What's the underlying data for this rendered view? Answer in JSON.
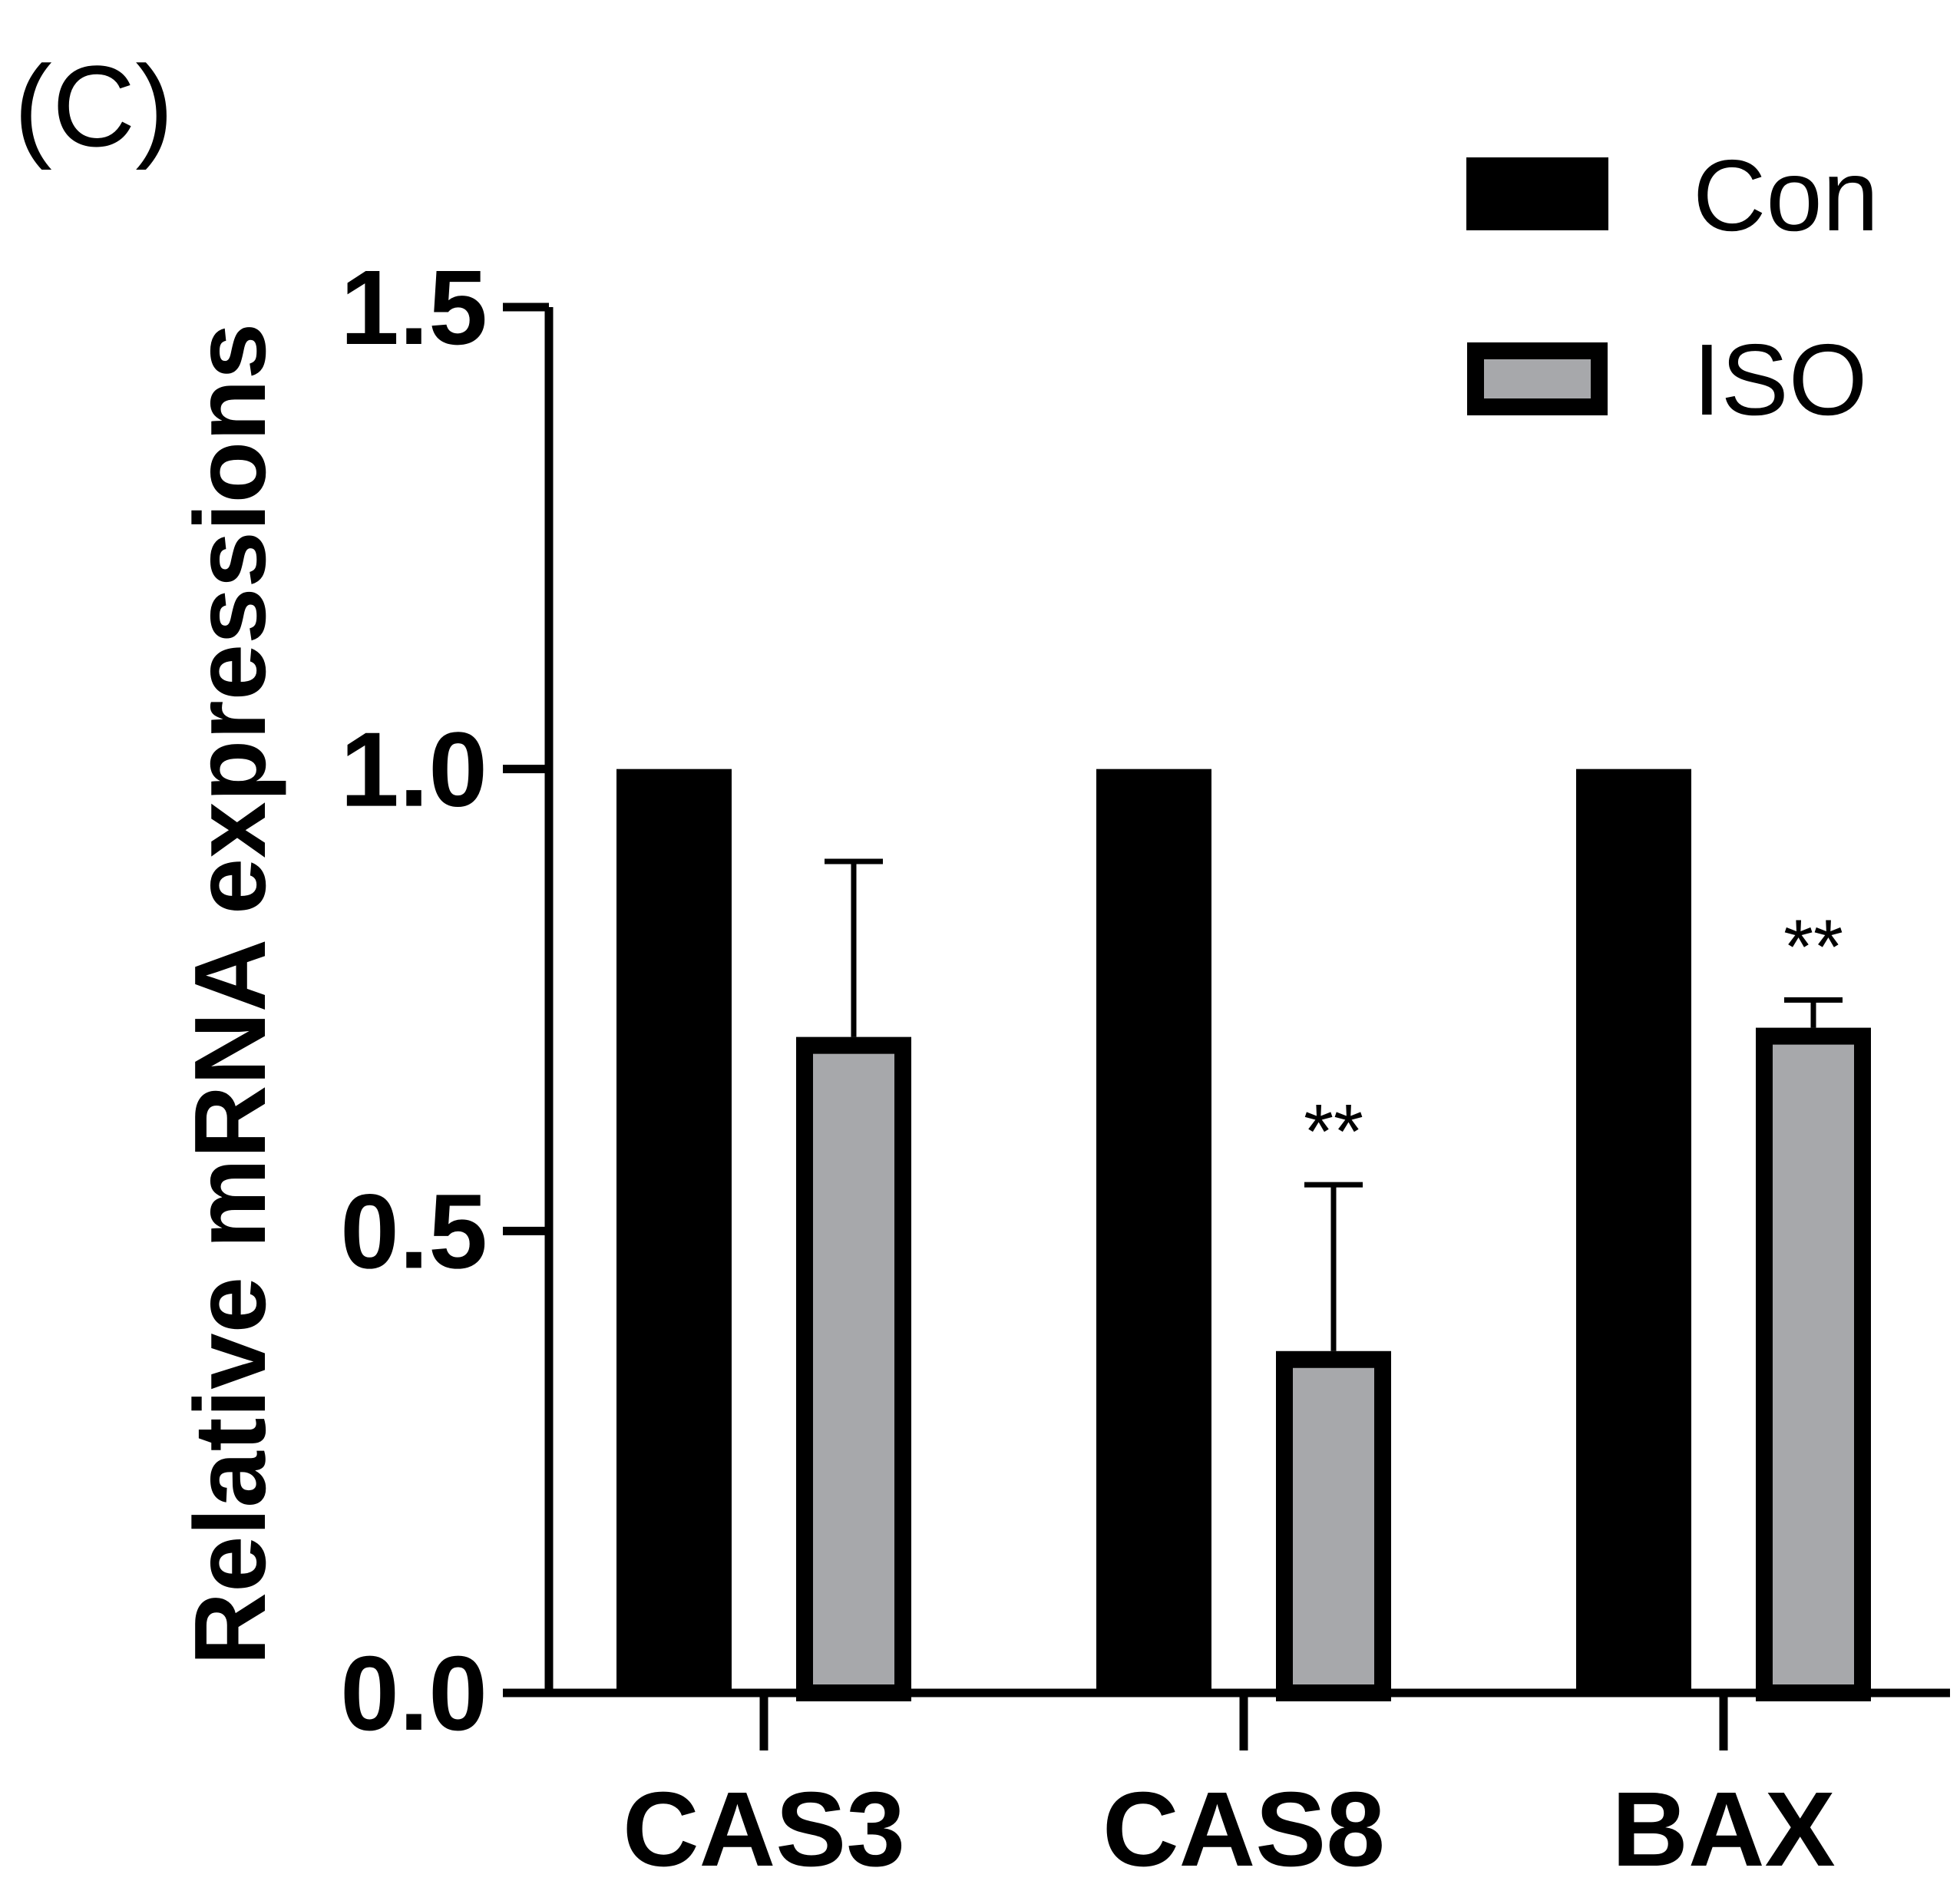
{
  "panel_label": "(C)",
  "colors": {
    "con": "#000000",
    "iso": "#a7a8ab",
    "axis": "#000000"
  },
  "chart_data": {
    "type": "bar",
    "title": "",
    "xlabel": "",
    "ylabel": "Relative mRNA expressions",
    "ylim": [
      0,
      1.5
    ],
    "yticks": [
      "0.0",
      "0.5",
      "1.0",
      "1.5"
    ],
    "categories": [
      "CAS3",
      "CAS8",
      "BAX"
    ],
    "legend_position": "top-right",
    "series": [
      {
        "name": "Con",
        "values": [
          1.0,
          1.0,
          1.0
        ],
        "errors": [
          0,
          0,
          0
        ]
      },
      {
        "name": "ISO",
        "values": [
          0.71,
          0.37,
          0.72
        ],
        "errors": [
          0.19,
          0.18,
          0.03
        ]
      }
    ],
    "annotations": [
      {
        "series": "ISO",
        "category": "CAS8",
        "text": "**"
      },
      {
        "series": "ISO",
        "category": "BAX",
        "text": "**"
      }
    ]
  }
}
